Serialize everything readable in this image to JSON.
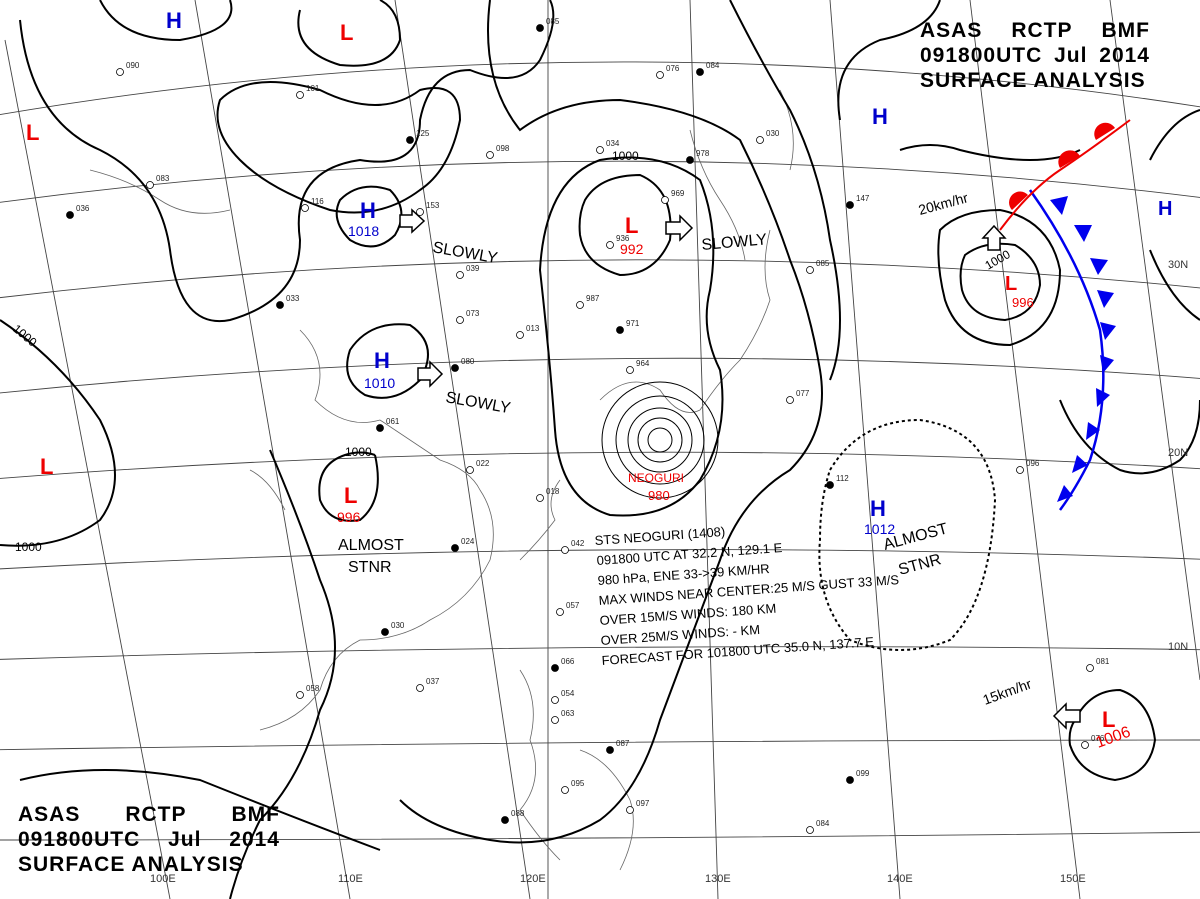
{
  "header_top_right": {
    "line1": [
      "ASAS",
      "RCTP",
      "BMF"
    ],
    "line2": [
      "091800UTC",
      "Jul",
      "2014"
    ],
    "line3": "SURFACE ANALYSIS"
  },
  "header_bottom_left": {
    "line1": [
      "ASAS",
      "RCTP",
      "BMF"
    ],
    "line2": [
      "091800UTC",
      "Jul",
      "2014"
    ],
    "line3": "SURFACE ANALYSIS"
  },
  "longitude_labels": [
    "100E",
    "110E",
    "120E",
    "130E",
    "140E",
    "150E"
  ],
  "latitude_labels": [
    "30N",
    "20N",
    "10N"
  ],
  "isobar_labels": [
    "1000",
    "1000",
    "1000",
    "1000",
    "1000"
  ],
  "pressure_centers": [
    {
      "symbol": "H",
      "value": "",
      "color": "#0000cc"
    },
    {
      "symbol": "L",
      "value": "",
      "color": "#ee0000"
    },
    {
      "symbol": "L",
      "value": "",
      "color": "#ee0000"
    },
    {
      "symbol": "H",
      "value": "1018",
      "color": "#0000cc"
    },
    {
      "symbol": "L",
      "value": "992",
      "color": "#ee0000"
    },
    {
      "symbol": "H",
      "value": "1010",
      "color": "#0000cc"
    },
    {
      "symbol": "L",
      "value": "",
      "color": "#ee0000"
    },
    {
      "symbol": "L",
      "value": "996",
      "color": "#ee0000"
    },
    {
      "symbol": "H",
      "value": "",
      "color": "#0000cc"
    },
    {
      "symbol": "L",
      "value": "996",
      "color": "#ee0000"
    },
    {
      "symbol": "H",
      "value": "",
      "color": "#0000cc"
    },
    {
      "symbol": "H",
      "value": "1012",
      "color": "#0000cc"
    },
    {
      "symbol": "L",
      "value": "1006",
      "color": "#ee0000"
    }
  ],
  "movement_labels": [
    "SLOWLY",
    "SLOWLY",
    "SLOWLY",
    "ALMOST",
    "STNR",
    "ALMOST",
    "STNR",
    "20km/hr",
    "15km/hr"
  ],
  "typhoon": {
    "name": "NEOGURI",
    "pressure": "980",
    "bulletin": [
      "STS  NEOGURI (1408)",
      "091800 UTC  AT 32.2 N, 129.1 E",
      "980 hPa, ENE  33->39 KM/HR",
      "MAX WINDS NEAR CENTER:25 M/S GUST 33 M/S",
      "OVER 15M/S WINDS: 180 KM",
      "OVER 25M/S WINDS:  - KM",
      "FORECAST FOR 101800 UTC 35.0 N, 137.7 E"
    ]
  },
  "station_samples": [
    "085",
    "090",
    "101",
    "125",
    "098",
    "076",
    "084",
    "034",
    "030",
    "978",
    "969",
    "936",
    "147",
    "085",
    "083",
    "036",
    "116",
    "153",
    "033",
    "039",
    "073",
    "080",
    "013",
    "987",
    "971",
    "964",
    "077",
    "061",
    "022",
    "018",
    "024",
    "042",
    "057",
    "030",
    "037",
    "058",
    "066",
    "054",
    "063",
    "087",
    "095",
    "097",
    "099",
    "084",
    "096",
    "112",
    "081",
    "076",
    "088"
  ],
  "colors": {
    "isobar": "#000000",
    "grid": "#333333",
    "coast": "#555555",
    "low": "#ee0000",
    "high": "#0000cc",
    "cold_front": "#0000ee",
    "warm_front": "#ee0000"
  }
}
